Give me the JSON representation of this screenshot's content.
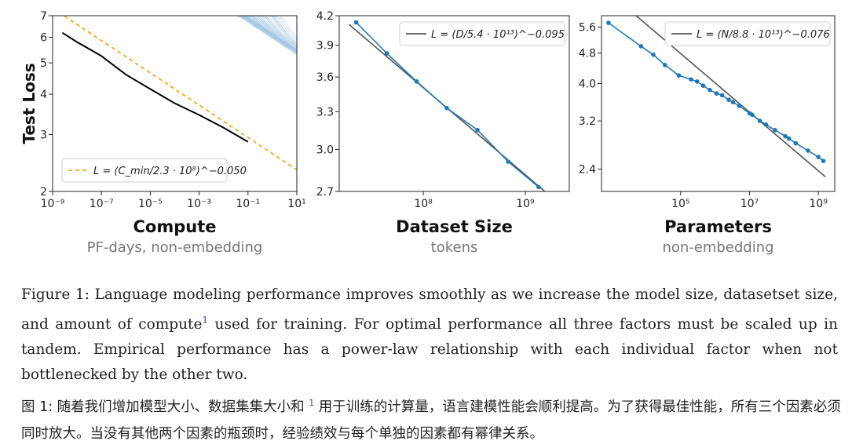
{
  "chart_data": [
    {
      "type": "line",
      "panel": "compute",
      "xlabel": "Compute",
      "xsub": "PF-days, non-embedding",
      "ylabel": "Test Loss",
      "x_scale": "log",
      "y_scale": "log",
      "xlim": [
        1e-09,
        10
      ],
      "ylim": [
        2,
        7
      ],
      "x_ticks": [
        "10⁻⁹",
        "10⁻⁷",
        "10⁻⁵",
        "10⁻³",
        "10⁻¹",
        "10¹"
      ],
      "y_ticks": [
        "2",
        "3",
        "4",
        "5",
        "6",
        "7"
      ],
      "legend": "L = (C_min/2.3 · 10⁸)^−0.050",
      "legend_position": "lower-left",
      "fit": {
        "name": "L = (C_min/2.3 · 10⁸)^−0.050",
        "coef": 230000000.0,
        "exp": -0.05,
        "color": "#f5a623",
        "style": "dashed"
      },
      "frontier": {
        "color": "#000000",
        "points": [
          [
            2.5e-09,
            6.2
          ],
          [
            1e-08,
            5.8
          ],
          [
            1e-07,
            5.25
          ],
          [
            1e-06,
            4.6
          ],
          [
            1e-05,
            4.15
          ],
          [
            0.0001,
            3.75
          ],
          [
            0.001,
            3.45
          ],
          [
            0.01,
            3.15
          ],
          [
            0.1,
            2.85
          ]
        ]
      },
      "runs_color": "#9ec2e2"
    },
    {
      "type": "line",
      "panel": "dataset",
      "xlabel": "Dataset Size",
      "xsub": "tokens",
      "x_scale": "log",
      "y_scale": "log",
      "xlim": [
        15000000.0,
        2700000000.0
      ],
      "ylim": [
        2.7,
        4.2
      ],
      "x_ticks": [
        "10⁸",
        "10⁹"
      ],
      "y_ticks": [
        "2.7",
        "3.0",
        "3.3",
        "3.6",
        "3.9",
        "4.2"
      ],
      "legend": "L = (D/5.4 · 10¹³)^−0.095",
      "legend_position": "top-right",
      "fit": {
        "name": "L = (D/5.4 · 10¹³)^−0.095",
        "coef": 54000000000000.0,
        "exp": -0.095,
        "color": "#555555"
      },
      "series": [
        {
          "color": "#1f77b4",
          "x": [
            22000000.0,
            44000000.0,
            86000000.0,
            170000000.0,
            340000000.0,
            680000000.0,
            1350000000.0
          ],
          "y": [
            4.13,
            3.82,
            3.56,
            3.33,
            3.15,
            2.91,
            2.73
          ]
        }
      ]
    },
    {
      "type": "line",
      "panel": "parameters",
      "xlabel": "Parameters",
      "xsub": "non-embedding",
      "x_scale": "log",
      "y_scale": "log",
      "xlim": [
        500,
        3000000000.0
      ],
      "ylim": [
        2.1,
        6.0
      ],
      "x_ticks": [
        "10⁵",
        "10⁷",
        "10⁹"
      ],
      "y_ticks": [
        "2.4",
        "3.2",
        "4.0",
        "4.8",
        "5.6"
      ],
      "legend": "L = (N/8.8 · 10¹³)^−0.076",
      "legend_position": "top-right",
      "fit": {
        "name": "L = (N/8.8 · 10¹³)^−0.076",
        "coef": 88000000000000.0,
        "exp": -0.076,
        "color": "#555555"
      },
      "series": [
        {
          "color": "#1f77b4",
          "x": [
            800,
            7000,
            16000,
            35000,
            88000,
            200000.0,
            300000.0,
            450000.0,
            700000.0,
            1100000.0,
            1600000.0,
            2500000.0,
            3300000.0,
            5000000.0,
            10000000.0,
            12000000.0,
            20000000.0,
            30000000.0,
            55000000.0,
            110000000.0,
            140000000.0,
            220000000.0,
            500000000.0,
            1000000000.0,
            1400000000.0
          ],
          "y": [
            5.75,
            5.0,
            4.75,
            4.47,
            4.2,
            4.1,
            4.05,
            3.95,
            3.85,
            3.77,
            3.73,
            3.63,
            3.58,
            3.5,
            3.35,
            3.32,
            3.2,
            3.13,
            3.03,
            2.92,
            2.88,
            2.8,
            2.68,
            2.58,
            2.52
          ]
        }
      ]
    }
  ],
  "caption_en": {
    "before": "Figure 1: Language modeling performance improves smoothly as we increase the model size, datasetset size, and amount of compute",
    "sup": "1",
    "after": " used for training. For optimal performance all three factors must be scaled up in tandem. Empirical performance has a power-law relationship with each individual factor when not bottlenecked by the other two."
  },
  "caption_zh": {
    "before": "图 1:   随着我们增加模型大小、数据集集大小和 ",
    "sup": "1",
    "after": " 用于训练的计算量，语言建模性能会顺利提高。为了获得最佳性能，所有三个因素必须同时放大。当没有其他两个因素的瓶颈时，经验绩效与每个单独的因素都有幂律关系。"
  }
}
